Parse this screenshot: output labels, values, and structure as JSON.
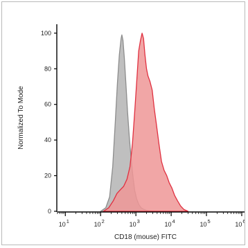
{
  "chart_data": {
    "type": "area",
    "title": "",
    "xlabel": "CD18 (mouse) FITC",
    "ylabel": "Normalized To Mode",
    "x_scale": "log",
    "xlim": [
      6,
      1200000
    ],
    "ylim": [
      0,
      105
    ],
    "x_ticks": [
      {
        "value": 10,
        "base": "10",
        "exp": "1"
      },
      {
        "value": 100,
        "base": "10",
        "exp": "2"
      },
      {
        "value": 1000,
        "base": "10",
        "exp": "3"
      },
      {
        "value": 10000,
        "base": "10",
        "exp": "4"
      },
      {
        "value": 100000,
        "base": "10",
        "exp": "5"
      },
      {
        "value": 1000000,
        "base": "10",
        "exp": "6"
      }
    ],
    "y_ticks": [
      0,
      20,
      40,
      60,
      80,
      100
    ],
    "grid": false,
    "legend": "none",
    "series": [
      {
        "color": "#8c8c8c",
        "fill": "#b4b4b4",
        "x": [
          100,
          140,
          180,
          220,
          260,
          300,
          340,
          380,
          400,
          430,
          470,
          520,
          580,
          650,
          730,
          820,
          920,
          1050,
          1200,
          1400,
          1700,
          2000,
          2500,
          3000
        ],
        "y": [
          0,
          2,
          8,
          25,
          50,
          72,
          88,
          97,
          99,
          96,
          86,
          72,
          56,
          42,
          30,
          20,
          12,
          7,
          4,
          2,
          1,
          0.5,
          0.2,
          0
        ]
      },
      {
        "color": "#e03040",
        "fill": "#ef9696",
        "x": [
          120,
          170,
          230,
          290,
          360,
          450,
          560,
          680,
          800,
          920,
          1050,
          1200,
          1350,
          1500,
          1650,
          1800,
          2000,
          2200,
          2500,
          2900,
          3300,
          3800,
          4500,
          5300,
          6300,
          7500,
          8800,
          10500,
          12500,
          15000,
          18500,
          23000,
          30000
        ],
        "y": [
          0,
          2,
          6,
          10,
          12,
          14,
          18,
          25,
          38,
          55,
          72,
          90,
          96,
          100,
          97,
          88,
          80,
          76,
          73,
          68,
          58,
          49,
          38,
          28,
          23,
          20,
          16,
          13,
          9,
          6,
          3,
          1,
          0
        ]
      }
    ]
  }
}
